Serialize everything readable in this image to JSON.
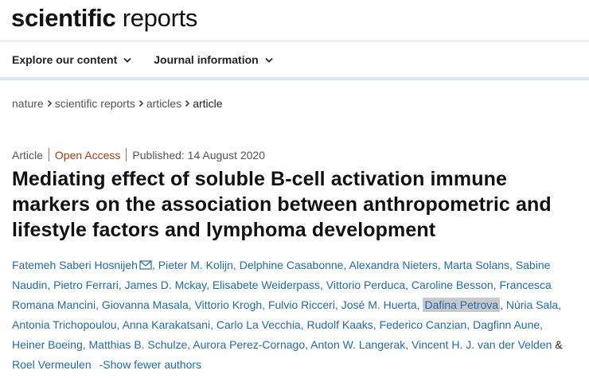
{
  "header": {
    "logo_bold": "scientific",
    "logo_regular": "reports"
  },
  "nav": {
    "items": [
      "Explore our content",
      "Journal information"
    ]
  },
  "breadcrumb": {
    "items": [
      "nature",
      "scientific reports",
      "articles"
    ],
    "current": "article"
  },
  "article": {
    "type": "Article",
    "access": "Open Access",
    "published": "Published: 14 August 2020",
    "title": "Mediating effect of soluble B-cell activation immune markers on the association between anthropometric and lifestyle factors and lymphoma development",
    "authors": [
      "Fatemeh Saberi Hosnijeh",
      "Pieter M. Kolijn",
      "Delphine Casabonne",
      "Alexandra Nieters",
      "Marta Solans",
      "Sabine Naudin",
      "Pietro Ferrari",
      "James D. Mckay",
      "Elisabete Weiderpass",
      "Vittorio Perduca",
      "Caroline Besson",
      "Francesca Romana Mancini",
      "Giovanna Masala",
      "Vittorio Krogh",
      "Fulvio Ricceri",
      "José M. Huerta",
      "Dafina Petrova",
      "Núria Sala",
      "Antonia Trichopoulou",
      "Anna Karakatsani",
      "Carlo La Vecchia",
      "Rudolf Kaaks",
      "Federico Canzian",
      "Dagfinn Aune",
      "Heiner Boeing",
      "Matthias B. Schulze",
      "Aurora Perez-Cornago",
      "Anton W. Langerak",
      "Vincent H. J. van der Velden",
      "Roel Vermeulen"
    ],
    "highlighted_author": "Dafina Petrova",
    "separator": ", ",
    "ampersand": " & ",
    "show_fewer": "-Show fewer authors"
  },
  "colors": {
    "link": "#226baf",
    "open_access": "#b03a10",
    "highlight": "#c9c9c9"
  },
  "icons": [
    "chevron-down-icon",
    "chevron-right-icon",
    "mail-icon"
  ]
}
